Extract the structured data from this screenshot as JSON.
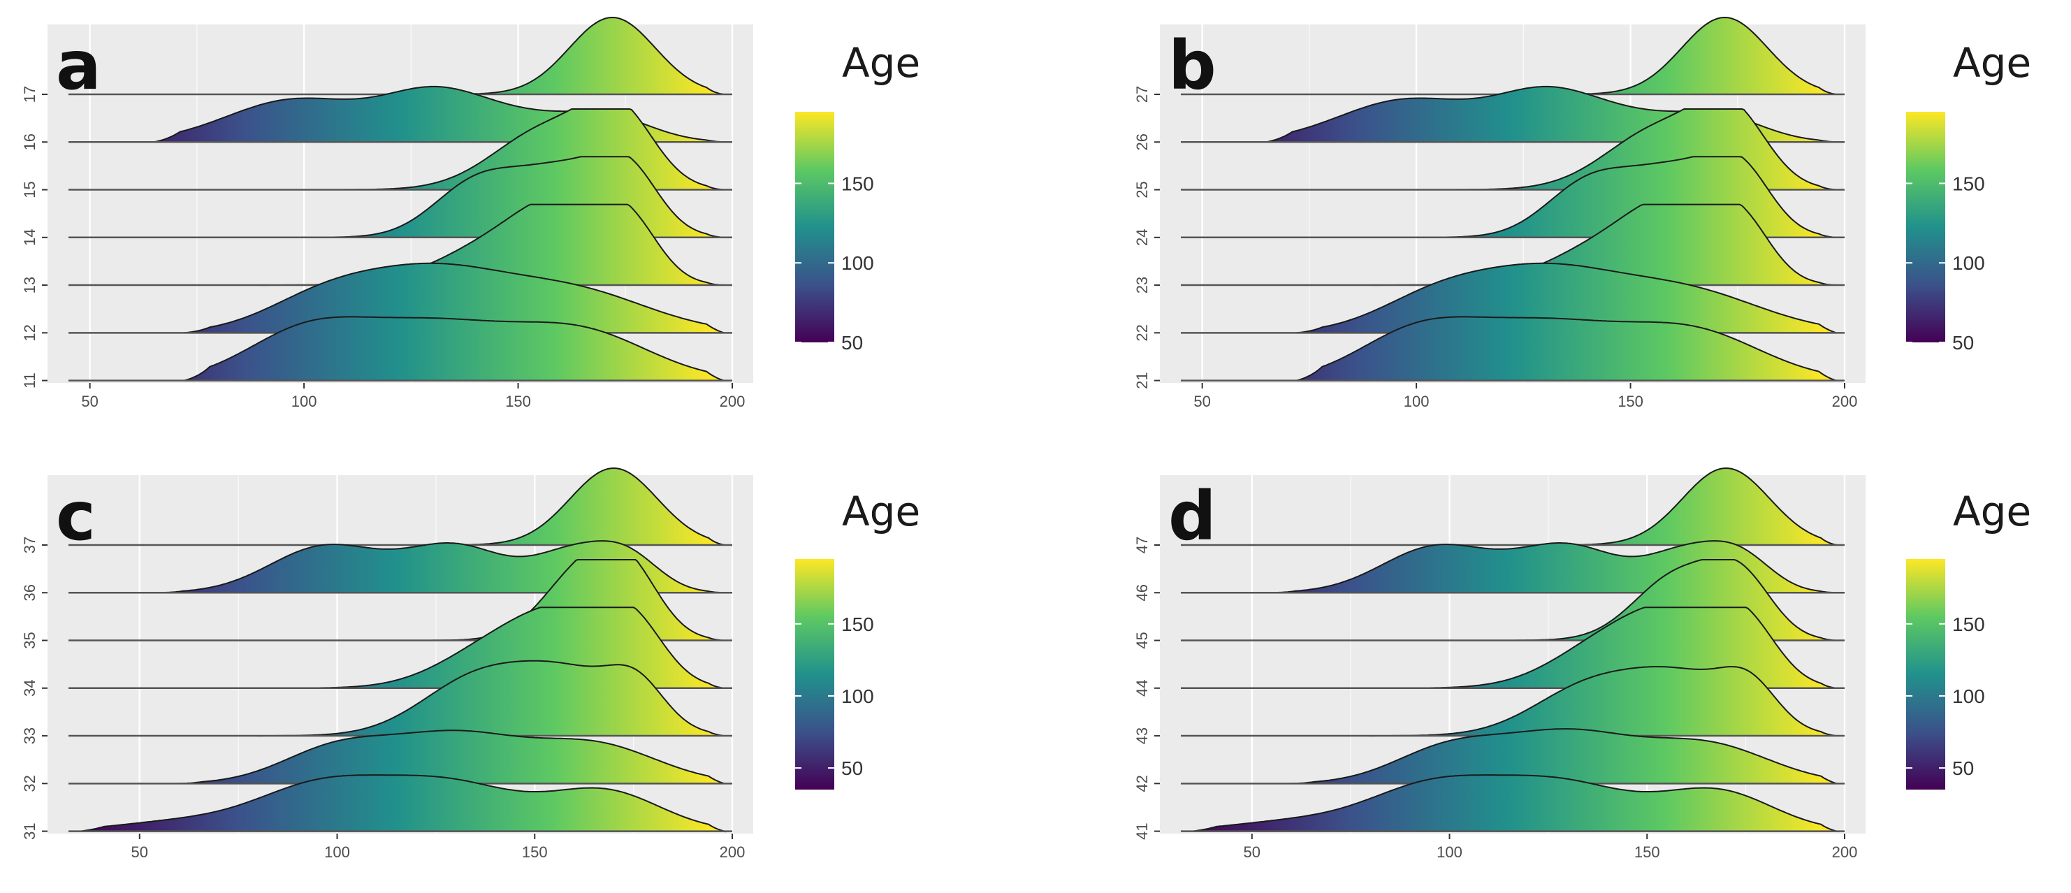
{
  "figure": {
    "background": "#ffffff",
    "panel_background": "#ebebeb",
    "grid_color": "#ffffff"
  },
  "colormap": {
    "name": "viridis",
    "stops": [
      "#440154",
      "#3b528b",
      "#21918c",
      "#5ec962",
      "#fde725"
    ]
  },
  "chart_data": [
    {
      "type": "ridgeline",
      "tag": "a",
      "legend_title": "Age",
      "legend_ticks": [
        "50",
        "100",
        "150"
      ],
      "color_range": [
        50,
        195
      ],
      "xlim": [
        45,
        200
      ],
      "xticks": [
        50,
        100,
        150,
        200
      ],
      "xtick_labels": [
        "50",
        "100",
        "150",
        "200"
      ],
      "series": [
        {
          "name": "17",
          "start": 55,
          "end": 198,
          "peaks": [
            [
              172,
              10,
              1.0
            ]
          ]
        },
        {
          "name": "16",
          "start": 65,
          "end": 198,
          "peaks": [
            [
              98,
              16,
              0.55
            ],
            [
              130,
              12,
              0.56
            ],
            [
              152,
              14,
              0.3
            ],
            [
              172,
              10,
              0.25
            ]
          ]
        },
        {
          "name": "15",
          "start": 95,
          "end": 198,
          "peaks": [
            [
              158,
              13,
              0.82
            ],
            [
              174,
              8,
              0.78
            ]
          ]
        },
        {
          "name": "14",
          "start": 95,
          "end": 198,
          "peaks": [
            [
              140,
              10,
              0.65
            ],
            [
              162,
              12,
              0.88
            ],
            [
              176,
              7,
              0.6
            ]
          ]
        },
        {
          "name": "13",
          "start": 90,
          "end": 198,
          "peaks": [
            [
              145,
              14,
              0.5
            ],
            [
              162,
              11,
              0.88
            ],
            [
              176,
              7,
              0.6
            ]
          ]
        },
        {
          "name": "12",
          "start": 72,
          "end": 198,
          "peaks": [
            [
              105,
              14,
              0.45
            ],
            [
              130,
              16,
              0.7
            ],
            [
              162,
              18,
              0.55
            ]
          ]
        },
        {
          "name": "11",
          "start": 72,
          "end": 198,
          "peaks": [
            [
              100,
              14,
              0.58
            ],
            [
              130,
              18,
              0.7
            ],
            [
              165,
              16,
              0.6
            ]
          ]
        }
      ]
    },
    {
      "type": "ridgeline",
      "tag": "b",
      "legend_title": "Age",
      "legend_ticks": [
        "50",
        "100",
        "150"
      ],
      "color_range": [
        50,
        195
      ],
      "xlim": [
        45,
        200
      ],
      "xticks": [
        50,
        100,
        150,
        200
      ],
      "xtick_labels": [
        "50",
        "100",
        "150",
        "200"
      ],
      "series": [
        {
          "name": "27",
          "start": 55,
          "end": 198,
          "peaks": [
            [
              172,
              10,
              1.0
            ]
          ]
        },
        {
          "name": "26",
          "start": 65,
          "end": 198,
          "peaks": [
            [
              98,
              16,
              0.55
            ],
            [
              130,
              12,
              0.56
            ],
            [
              152,
              14,
              0.3
            ],
            [
              172,
              10,
              0.25
            ]
          ]
        },
        {
          "name": "25",
          "start": 95,
          "end": 198,
          "peaks": [
            [
              158,
              13,
              0.82
            ],
            [
              174,
              8,
              0.78
            ]
          ]
        },
        {
          "name": "24",
          "start": 95,
          "end": 198,
          "peaks": [
            [
              140,
              10,
              0.65
            ],
            [
              162,
              12,
              0.88
            ],
            [
              176,
              7,
              0.6
            ]
          ]
        },
        {
          "name": "23",
          "start": 90,
          "end": 198,
          "peaks": [
            [
              145,
              14,
              0.5
            ],
            [
              162,
              11,
              0.88
            ],
            [
              176,
              7,
              0.6
            ]
          ]
        },
        {
          "name": "22",
          "start": 72,
          "end": 198,
          "peaks": [
            [
              105,
              14,
              0.45
            ],
            [
              130,
              16,
              0.7
            ],
            [
              162,
              18,
              0.55
            ]
          ]
        },
        {
          "name": "21",
          "start": 72,
          "end": 198,
          "peaks": [
            [
              100,
              14,
              0.58
            ],
            [
              130,
              18,
              0.7
            ],
            [
              165,
              16,
              0.6
            ]
          ]
        }
      ]
    },
    {
      "type": "ridgeline",
      "tag": "c",
      "legend_title": "Age",
      "legend_ticks": [
        "50",
        "100",
        "150"
      ],
      "color_range": [
        35,
        195
      ],
      "xlim": [
        32,
        200
      ],
      "xticks": [
        50,
        100,
        150,
        200
      ],
      "xtick_labels": [
        "50",
        "100",
        "150",
        "200"
      ],
      "series": [
        {
          "name": "37",
          "start": 50,
          "end": 198,
          "peaks": [
            [
              170,
              11,
              1.0
            ]
          ]
        },
        {
          "name": "36",
          "start": 55,
          "end": 198,
          "peaks": [
            [
              97,
              14,
              0.6
            ],
            [
              130,
              13,
              0.6
            ],
            [
              160,
              10,
              0.5
            ],
            [
              174,
              8,
              0.4
            ]
          ]
        },
        {
          "name": "35",
          "start": 90,
          "end": 198,
          "peaks": [
            [
              162,
              10,
              0.88
            ],
            [
              174,
              8,
              0.72
            ]
          ]
        },
        {
          "name": "34",
          "start": 90,
          "end": 198,
          "peaks": [
            [
              140,
              14,
              0.5
            ],
            [
              160,
              13,
              0.85
            ],
            [
              175,
              8,
              0.6
            ]
          ]
        },
        {
          "name": "33",
          "start": 80,
          "end": 198,
          "peaks": [
            [
              135,
              14,
              0.7
            ],
            [
              160,
              14,
              0.75
            ],
            [
              176,
              7,
              0.45
            ]
          ]
        },
        {
          "name": "32",
          "start": 60,
          "end": 198,
          "peaks": [
            [
              100,
              14,
              0.45
            ],
            [
              130,
              16,
              0.6
            ],
            [
              165,
              16,
              0.5
            ]
          ]
        },
        {
          "name": "31",
          "start": 35,
          "end": 198,
          "peaks": [
            [
              60,
              16,
              0.12
            ],
            [
              95,
              16,
              0.55
            ],
            [
              128,
              18,
              0.62
            ],
            [
              168,
              14,
              0.5
            ]
          ]
        }
      ]
    },
    {
      "type": "ridgeline",
      "tag": "d",
      "legend_title": "Age",
      "legend_ticks": [
        "50",
        "100",
        "150"
      ],
      "color_range": [
        35,
        195
      ],
      "xlim": [
        32,
        200
      ],
      "xticks": [
        50,
        100,
        150,
        200
      ],
      "xtick_labels": [
        "50",
        "100",
        "150",
        "200"
      ],
      "series": [
        {
          "name": "47",
          "start": 50,
          "end": 198,
          "peaks": [
            [
              170,
              11,
              1.0
            ]
          ]
        },
        {
          "name": "46",
          "start": 55,
          "end": 198,
          "peaks": [
            [
              97,
              14,
              0.6
            ],
            [
              130,
              13,
              0.6
            ],
            [
              160,
              10,
              0.5
            ],
            [
              174,
              8,
              0.4
            ]
          ]
        },
        {
          "name": "45",
          "start": 90,
          "end": 198,
          "peaks": [
            [
              158,
              11,
              0.85
            ],
            [
              174,
              8,
              0.7
            ]
          ]
        },
        {
          "name": "44",
          "start": 90,
          "end": 198,
          "peaks": [
            [
              140,
              14,
              0.55
            ],
            [
              160,
              13,
              0.85
            ],
            [
              175,
              8,
              0.6
            ]
          ]
        },
        {
          "name": "43",
          "start": 80,
          "end": 198,
          "peaks": [
            [
              135,
              14,
              0.6
            ],
            [
              160,
              14,
              0.72
            ],
            [
              176,
              7,
              0.45
            ]
          ]
        },
        {
          "name": "42",
          "start": 60,
          "end": 198,
          "peaks": [
            [
              100,
              14,
              0.45
            ],
            [
              130,
              16,
              0.62
            ],
            [
              165,
              16,
              0.5
            ]
          ]
        },
        {
          "name": "41",
          "start": 35,
          "end": 198,
          "peaks": [
            [
              60,
              16,
              0.12
            ],
            [
              95,
              16,
              0.55
            ],
            [
              128,
              18,
              0.62
            ],
            [
              168,
              14,
              0.5
            ]
          ]
        }
      ]
    }
  ]
}
